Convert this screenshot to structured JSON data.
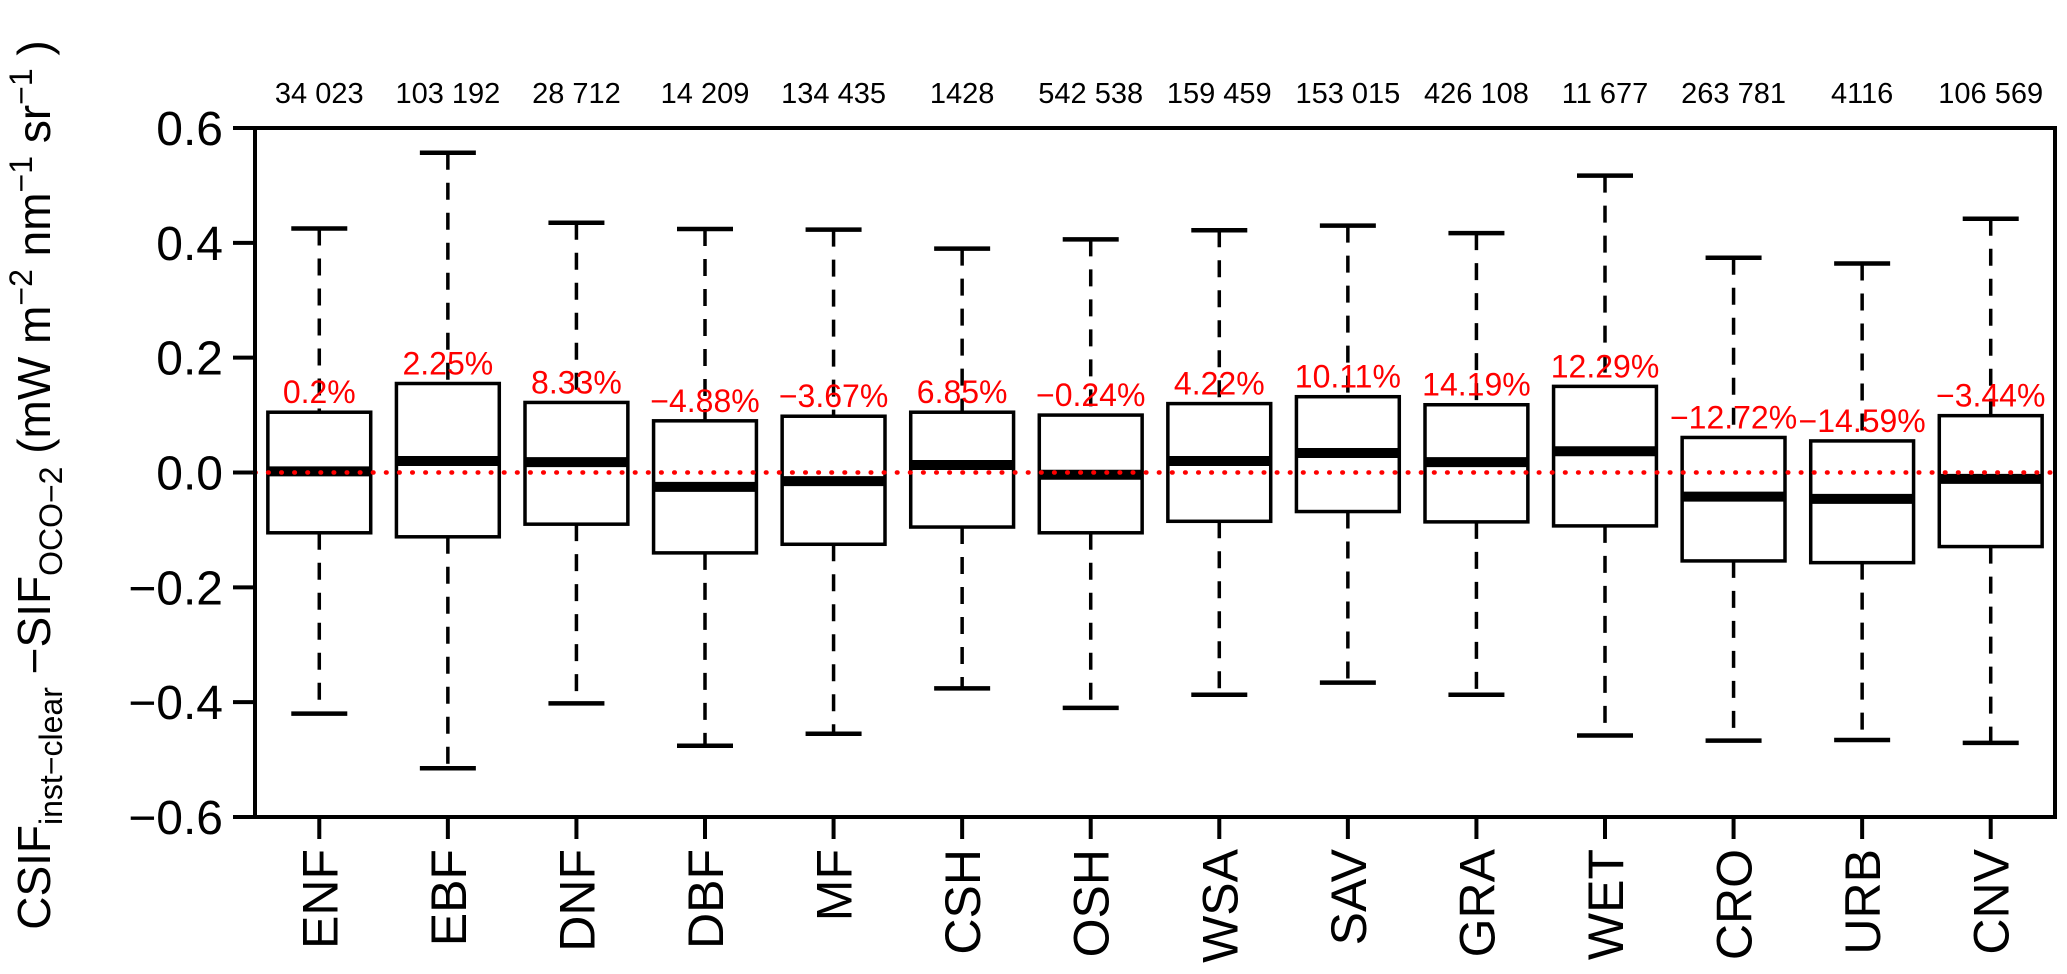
{
  "chart_data": {
    "type": "boxplot",
    "title": "",
    "ylabel": "CSIF inst−clear −SIF OCO−2 (mW m−2 nm−1 sr−1)",
    "ylabel_segments": [
      {
        "text": "CSIF",
        "style": "normal"
      },
      {
        "text": "inst−clear",
        "style": "sub"
      },
      {
        "text": " −SIF",
        "style": "normal"
      },
      {
        "text": "OCO−2",
        "style": "sub"
      },
      {
        "text": "  (mW m",
        "style": "normal"
      },
      {
        "text": "−2",
        "style": "sup"
      },
      {
        "text": " nm",
        "style": "normal"
      },
      {
        "text": "−1",
        "style": "sup"
      },
      {
        "text": " sr",
        "style": "normal"
      },
      {
        "text": "−1",
        "style": "sup"
      },
      {
        "text": " )",
        "style": "normal"
      }
    ],
    "xlabel": "",
    "ylim": [
      -0.6,
      0.6
    ],
    "yticks": [
      {
        "value": 0.6,
        "label": "0.6"
      },
      {
        "value": 0.4,
        "label": "0.4"
      },
      {
        "value": 0.2,
        "label": "0.2"
      },
      {
        "value": 0.0,
        "label": "0.0"
      },
      {
        "value": -0.2,
        "label": "−0.2"
      },
      {
        "value": -0.4,
        "label": "−0.4"
      },
      {
        "value": -0.6,
        "label": "−0.6"
      }
    ],
    "grid": false,
    "legend": "none",
    "zero_line": {
      "value": 0.0,
      "style": "dotted",
      "color": "#ff0000"
    },
    "annotation_color": "#ff0000",
    "box_color": "#000000",
    "categories": [
      "ENF",
      "EBF",
      "DNF",
      "DBF",
      "MF",
      "CSH",
      "OSH",
      "WSA",
      "SAV",
      "GRA",
      "WET",
      "CRO",
      "URB",
      "CNV"
    ],
    "counts": [
      "34 023",
      "103 192",
      "28 712",
      "14 209",
      "134 435",
      "1428",
      "542 538",
      "159 459",
      "153 015",
      "426 108",
      "11 677",
      "263 781",
      "4116",
      "106 569"
    ],
    "percent_labels": [
      "0.2%",
      "2.25%",
      "8.33%",
      "−4.88%",
      "−3.67%",
      "6.85%",
      "−0.24%",
      "4.22%",
      "10.11%",
      "14.19%",
      "12.29%",
      "−12.72%",
      "−14.59%",
      "−3.44%"
    ],
    "boxes": [
      {
        "category": "ENF",
        "whisker_low": -0.42,
        "q1": -0.105,
        "median": 0.002,
        "q3": 0.105,
        "whisker_high": 0.425
      },
      {
        "category": "EBF",
        "whisker_low": -0.515,
        "q1": -0.112,
        "median": 0.02,
        "q3": 0.155,
        "whisker_high": 0.557
      },
      {
        "category": "DNF",
        "whisker_low": -0.402,
        "q1": -0.09,
        "median": 0.018,
        "q3": 0.122,
        "whisker_high": 0.435
      },
      {
        "category": "DBF",
        "whisker_low": -0.476,
        "q1": -0.14,
        "median": -0.025,
        "q3": 0.09,
        "whisker_high": 0.424
      },
      {
        "category": "MF",
        "whisker_low": -0.455,
        "q1": -0.125,
        "median": -0.015,
        "q3": 0.098,
        "whisker_high": 0.423
      },
      {
        "category": "CSH",
        "whisker_low": -0.376,
        "q1": -0.095,
        "median": 0.013,
        "q3": 0.105,
        "whisker_high": 0.39
      },
      {
        "category": "OSH",
        "whisker_low": -0.41,
        "q1": -0.105,
        "median": -0.004,
        "q3": 0.1,
        "whisker_high": 0.406
      },
      {
        "category": "WSA",
        "whisker_low": -0.387,
        "q1": -0.085,
        "median": 0.02,
        "q3": 0.12,
        "whisker_high": 0.422
      },
      {
        "category": "SAV",
        "whisker_low": -0.366,
        "q1": -0.068,
        "median": 0.034,
        "q3": 0.132,
        "whisker_high": 0.43
      },
      {
        "category": "GRA",
        "whisker_low": -0.387,
        "q1": -0.086,
        "median": 0.018,
        "q3": 0.118,
        "whisker_high": 0.417
      },
      {
        "category": "WET",
        "whisker_low": -0.458,
        "q1": -0.093,
        "median": 0.037,
        "q3": 0.15,
        "whisker_high": 0.517
      },
      {
        "category": "CRO",
        "whisker_low": -0.467,
        "q1": -0.154,
        "median": -0.042,
        "q3": 0.061,
        "whisker_high": 0.374
      },
      {
        "category": "URB",
        "whisker_low": -0.466,
        "q1": -0.157,
        "median": -0.046,
        "q3": 0.055,
        "whisker_high": 0.364
      },
      {
        "category": "CNV",
        "whisker_low": -0.471,
        "q1": -0.129,
        "median": -0.011,
        "q3": 0.099,
        "whisker_high": 0.442
      }
    ]
  }
}
